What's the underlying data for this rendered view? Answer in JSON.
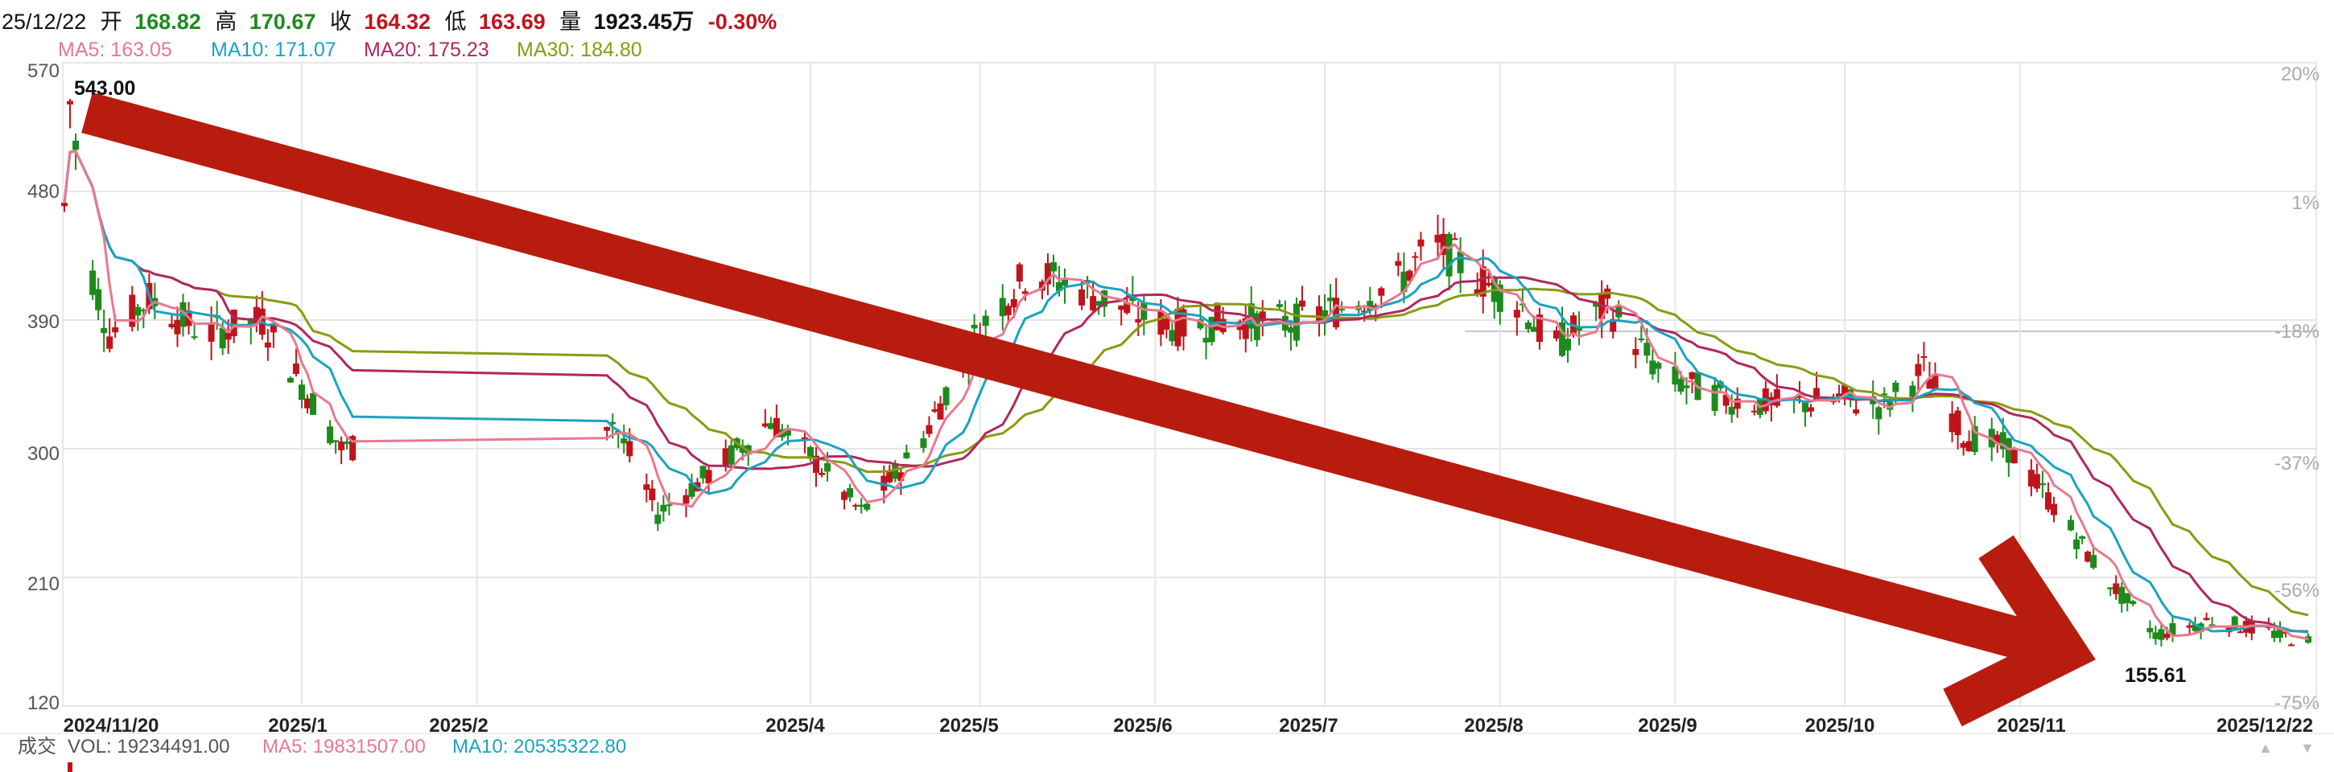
{
  "header": {
    "date": "25/12/22",
    "open_label": "开",
    "open": "168.82",
    "high_label": "高",
    "high": "170.67",
    "close_label": "收",
    "close": "164.32",
    "low_label": "低",
    "low": "163.69",
    "volume_label": "量",
    "volume": "1923.45万",
    "change": "-0.30%",
    "ma": [
      {
        "label": "MA5: 163.05",
        "color": "#e8798e"
      },
      {
        "label": "MA10: 171.07",
        "color": "#1aa3c0"
      },
      {
        "label": "MA20: 175.23",
        "color": "#b0285e"
      },
      {
        "label": "MA30: 184.80",
        "color": "#8a9a12"
      }
    ]
  },
  "volume_bar": {
    "label": "成交",
    "vol": "VOL: 19234491.00",
    "ma5": "MA5: 19831507.00",
    "ma10": "MA10: 20535322.80"
  },
  "colors": {
    "up": "#c0141c",
    "down": "#1e8a1e",
    "arrow": "#b81c0e",
    "ma5": "#e8798e",
    "ma10": "#1aa3c0",
    "ma20": "#b0285e",
    "ma30": "#8a9a12",
    "grid": "#e6e6e6",
    "axis_text": "#999999"
  },
  "annotations": {
    "high_marker": "543.00",
    "low_marker": "155.61",
    "trend_arrow": "down"
  },
  "chart_data": {
    "type": "candlestick",
    "title": "",
    "ylim": [
      120,
      570
    ],
    "left_ticks": [
      "570",
      "480",
      "390",
      "300",
      "210",
      "120"
    ],
    "right_ticks": [
      "20%",
      "1%",
      "-18%",
      "-37%",
      "-56%",
      "-75%"
    ],
    "x_labels": [
      "2024/11/20",
      "2025/1",
      "2025/2",
      "2025/4",
      "2025/5",
      "2025/6",
      "2025/7",
      "2025/8",
      "2025/9",
      "2025/10",
      "2025/11",
      "2025/12/22"
    ],
    "close_series": [
      {
        "date": "2024/11/20",
        "close": 470
      },
      {
        "date": "2024/11/21",
        "close": 543
      },
      {
        "date": "2024/11/25",
        "close": 420
      },
      {
        "date": "2024/11/28",
        "close": 380
      },
      {
        "date": "2024/12/5",
        "close": 405
      },
      {
        "date": "2024/12/15",
        "close": 380
      },
      {
        "date": "2024/12/25",
        "close": 390
      },
      {
        "date": "2025/1/8",
        "close": 300
      },
      {
        "date": "2025/2/25",
        "close": 320
      },
      {
        "date": "2025/3/5",
        "close": 255
      },
      {
        "date": "2025/3/15",
        "close": 285
      },
      {
        "date": "2025/3/25",
        "close": 320
      },
      {
        "date": "2025/4/1",
        "close": 295
      },
      {
        "date": "2025/4/10",
        "close": 255
      },
      {
        "date": "2025/4/20",
        "close": 300
      },
      {
        "date": "2025/4/25",
        "close": 340
      },
      {
        "date": "2025/5/1",
        "close": 385
      },
      {
        "date": "2025/5/10",
        "close": 425
      },
      {
        "date": "2025/5/20",
        "close": 410
      },
      {
        "date": "2025/5/28",
        "close": 395
      },
      {
        "date": "2025/6/5",
        "close": 385
      },
      {
        "date": "2025/6/15",
        "close": 390
      },
      {
        "date": "2025/6/25",
        "close": 388
      },
      {
        "date": "2025/7/5",
        "close": 400
      },
      {
        "date": "2025/7/15",
        "close": 420
      },
      {
        "date": "2025/7/20",
        "close": 445
      },
      {
        "date": "2025/7/28",
        "close": 420
      },
      {
        "date": "2025/8/5",
        "close": 400
      },
      {
        "date": "2025/8/10",
        "close": 370
      },
      {
        "date": "2025/8/20",
        "close": 400
      },
      {
        "date": "2025/8/30",
        "close": 350
      },
      {
        "date": "2025/9/10",
        "close": 335
      },
      {
        "date": "2025/9/20",
        "close": 330
      },
      {
        "date": "2025/9/30",
        "close": 335
      },
      {
        "date": "2025/10/8",
        "close": 330
      },
      {
        "date": "2025/10/15",
        "close": 355
      },
      {
        "date": "2025/10/22",
        "close": 310
      },
      {
        "date": "2025/10/30",
        "close": 300
      },
      {
        "date": "2025/11/8",
        "close": 255
      },
      {
        "date": "2025/11/15",
        "close": 215
      },
      {
        "date": "2025/11/25",
        "close": 170
      },
      {
        "date": "2025/12/5",
        "close": 180
      },
      {
        "date": "2025/12/15",
        "close": 172
      },
      {
        "date": "2025/12/22",
        "close": 164.32
      }
    ],
    "ma_values_last": {
      "MA5": 163.05,
      "MA10": 171.07,
      "MA20": 175.23,
      "MA30": 184.8
    },
    "grid": true
  }
}
